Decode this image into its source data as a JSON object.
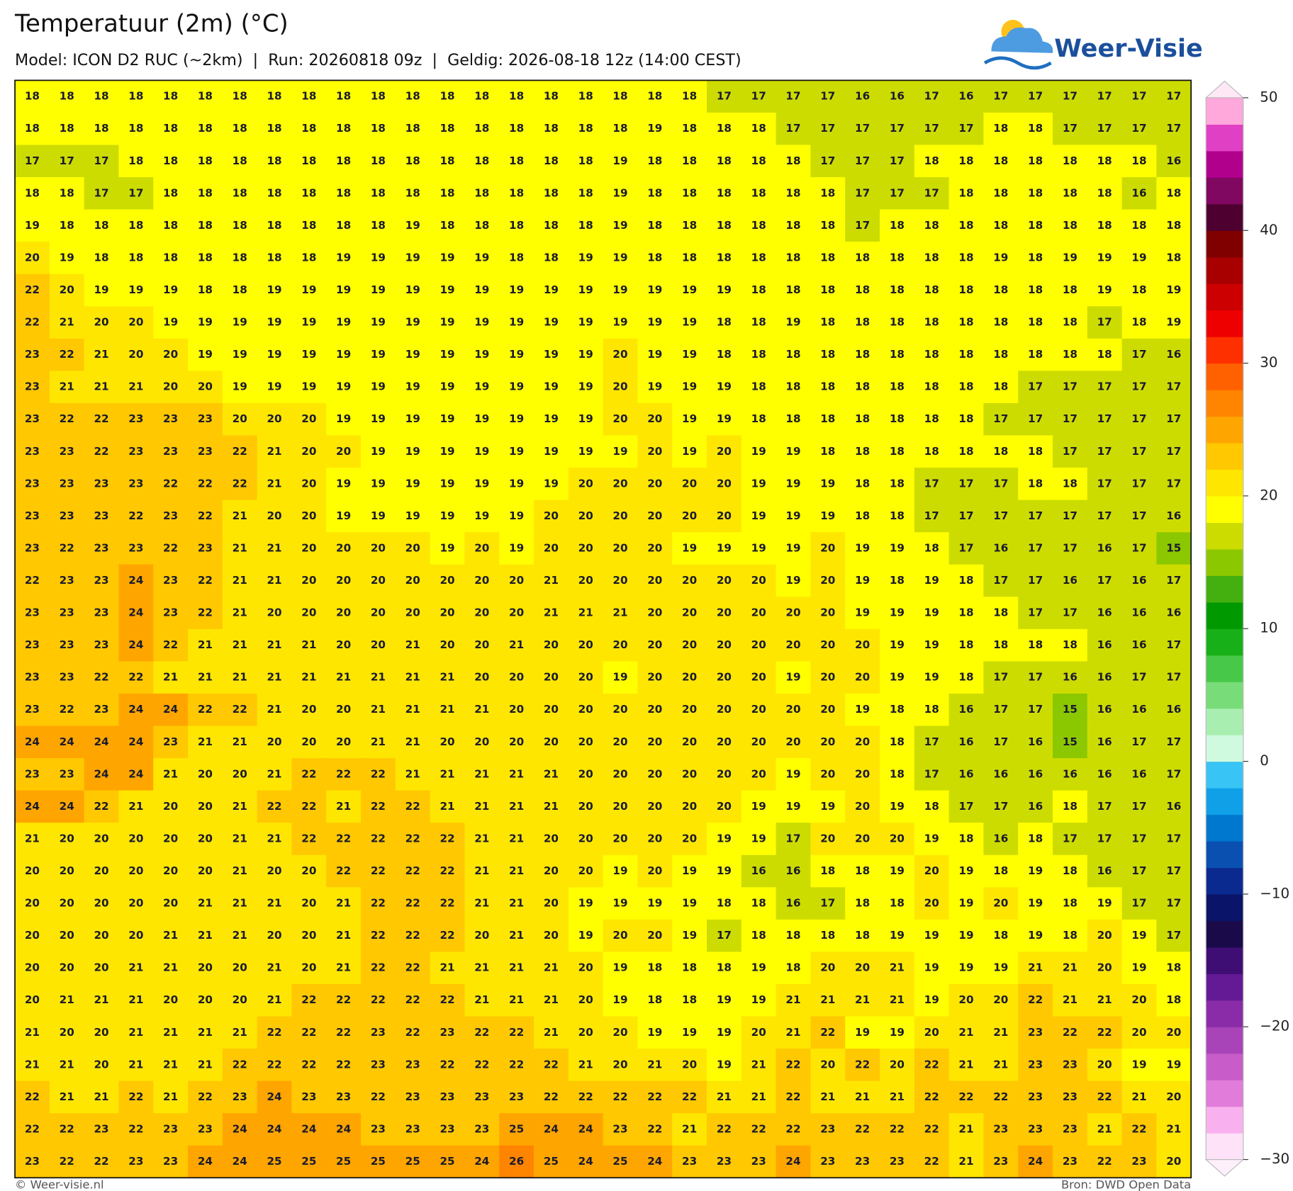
{
  "header": {
    "title": "Temperatuur (2m) (°C)",
    "subtitle": "Model: ICON D2 RUC (~2km)  |  Run: 20260818 09z  |  Geldig: 2026-08-18 12z (14:00 CEST)",
    "logo": "Weer-Visie"
  },
  "grid": {
    "rows": [
      [
        18,
        18,
        18,
        18,
        18,
        18,
        18,
        18,
        18,
        18,
        18,
        18,
        18,
        18,
        18,
        18,
        18,
        18,
        18,
        18,
        17,
        17,
        17,
        17,
        16,
        16,
        17,
        16,
        17,
        17,
        17,
        17,
        17,
        17
      ],
      [
        18,
        18,
        18,
        18,
        18,
        18,
        18,
        18,
        18,
        18,
        18,
        18,
        18,
        18,
        18,
        18,
        18,
        18,
        19,
        18,
        18,
        18,
        17,
        17,
        17,
        17,
        17,
        17,
        18,
        18,
        17,
        17,
        17,
        17
      ],
      [
        17,
        17,
        17,
        18,
        18,
        18,
        18,
        18,
        18,
        18,
        18,
        18,
        18,
        18,
        18,
        18,
        18,
        19,
        18,
        18,
        18,
        18,
        18,
        17,
        17,
        17,
        18,
        18,
        18,
        18,
        18,
        18,
        18,
        16
      ],
      [
        18,
        18,
        17,
        17,
        18,
        18,
        18,
        18,
        18,
        18,
        18,
        18,
        18,
        18,
        18,
        18,
        18,
        19,
        18,
        18,
        18,
        18,
        18,
        18,
        17,
        17,
        17,
        18,
        18,
        18,
        18,
        18,
        16,
        18
      ],
      [
        19,
        18,
        18,
        18,
        18,
        18,
        18,
        18,
        18,
        18,
        18,
        19,
        18,
        18,
        18,
        18,
        18,
        19,
        18,
        18,
        18,
        18,
        18,
        18,
        17,
        18,
        18,
        18,
        18,
        18,
        18,
        18,
        18,
        18
      ],
      [
        20,
        19,
        18,
        18,
        18,
        18,
        18,
        18,
        18,
        19,
        19,
        19,
        19,
        19,
        18,
        18,
        19,
        19,
        18,
        18,
        18,
        18,
        18,
        18,
        18,
        18,
        18,
        18,
        19,
        18,
        19,
        19,
        19,
        18
      ],
      [
        22,
        20,
        19,
        19,
        19,
        18,
        18,
        19,
        19,
        19,
        19,
        19,
        19,
        19,
        19,
        19,
        19,
        19,
        19,
        19,
        19,
        18,
        18,
        18,
        18,
        18,
        18,
        18,
        18,
        18,
        18,
        19,
        18,
        19
      ],
      [
        22,
        21,
        20,
        20,
        19,
        19,
        19,
        19,
        19,
        19,
        19,
        19,
        19,
        19,
        19,
        19,
        19,
        19,
        19,
        19,
        18,
        18,
        19,
        18,
        18,
        18,
        18,
        18,
        18,
        18,
        18,
        17,
        18,
        19
      ],
      [
        23,
        22,
        21,
        20,
        20,
        19,
        19,
        19,
        19,
        19,
        19,
        19,
        19,
        19,
        19,
        19,
        19,
        20,
        19,
        19,
        18,
        18,
        18,
        18,
        18,
        18,
        18,
        18,
        18,
        18,
        18,
        18,
        17,
        16
      ],
      [
        23,
        21,
        21,
        21,
        20,
        20,
        19,
        19,
        19,
        19,
        19,
        19,
        19,
        19,
        19,
        19,
        19,
        20,
        19,
        19,
        19,
        18,
        18,
        18,
        18,
        18,
        18,
        18,
        18,
        17,
        17,
        17,
        17,
        17
      ],
      [
        23,
        22,
        22,
        23,
        23,
        23,
        20,
        20,
        20,
        19,
        19,
        19,
        19,
        19,
        19,
        19,
        19,
        20,
        20,
        19,
        19,
        18,
        18,
        18,
        18,
        18,
        18,
        18,
        17,
        17,
        17,
        17,
        17,
        17
      ],
      [
        23,
        23,
        22,
        23,
        23,
        23,
        22,
        21,
        20,
        20,
        19,
        19,
        19,
        19,
        19,
        19,
        19,
        19,
        20,
        19,
        20,
        19,
        19,
        18,
        18,
        18,
        18,
        18,
        18,
        18,
        17,
        17,
        17,
        17
      ],
      [
        23,
        23,
        23,
        23,
        22,
        22,
        22,
        21,
        20,
        19,
        19,
        19,
        19,
        19,
        19,
        19,
        20,
        20,
        20,
        20,
        20,
        19,
        19,
        19,
        18,
        18,
        17,
        17,
        17,
        18,
        18,
        17,
        17,
        17
      ],
      [
        23,
        23,
        23,
        22,
        23,
        22,
        21,
        20,
        20,
        19,
        19,
        19,
        19,
        19,
        19,
        20,
        20,
        20,
        20,
        20,
        20,
        19,
        19,
        19,
        18,
        18,
        17,
        17,
        17,
        17,
        17,
        17,
        17,
        16
      ],
      [
        23,
        22,
        23,
        23,
        22,
        23,
        21,
        21,
        20,
        20,
        20,
        20,
        19,
        20,
        19,
        20,
        20,
        20,
        20,
        19,
        19,
        19,
        19,
        20,
        19,
        19,
        18,
        17,
        16,
        17,
        17,
        16,
        17,
        15
      ],
      [
        22,
        23,
        23,
        24,
        23,
        22,
        21,
        21,
        20,
        20,
        20,
        20,
        20,
        20,
        20,
        21,
        20,
        20,
        20,
        20,
        20,
        20,
        19,
        20,
        19,
        18,
        19,
        18,
        17,
        17,
        16,
        17,
        16,
        17
      ],
      [
        23,
        23,
        23,
        24,
        23,
        22,
        21,
        20,
        20,
        20,
        20,
        20,
        20,
        20,
        20,
        21,
        21,
        21,
        20,
        20,
        20,
        20,
        20,
        20,
        19,
        19,
        19,
        18,
        18,
        17,
        17,
        16,
        16,
        16
      ],
      [
        23,
        23,
        23,
        24,
        22,
        21,
        21,
        21,
        21,
        20,
        20,
        21,
        20,
        20,
        21,
        20,
        20,
        20,
        20,
        20,
        20,
        20,
        20,
        20,
        20,
        19,
        19,
        18,
        18,
        18,
        18,
        16,
        16,
        17
      ],
      [
        23,
        23,
        22,
        22,
        21,
        21,
        21,
        21,
        21,
        21,
        21,
        21,
        21,
        20,
        20,
        20,
        20,
        19,
        20,
        20,
        20,
        20,
        19,
        20,
        20,
        19,
        19,
        18,
        17,
        17,
        16,
        16,
        17,
        17
      ],
      [
        23,
        22,
        23,
        24,
        24,
        22,
        22,
        21,
        20,
        20,
        21,
        21,
        21,
        21,
        20,
        20,
        20,
        20,
        20,
        20,
        20,
        20,
        20,
        20,
        19,
        18,
        18,
        16,
        17,
        17,
        15,
        16,
        16,
        16
      ],
      [
        24,
        24,
        24,
        24,
        23,
        21,
        21,
        20,
        20,
        20,
        21,
        21,
        20,
        20,
        20,
        20,
        20,
        20,
        20,
        20,
        20,
        20,
        20,
        20,
        20,
        18,
        17,
        16,
        17,
        16,
        15,
        16,
        17,
        17
      ],
      [
        23,
        23,
        24,
        24,
        21,
        20,
        20,
        21,
        22,
        22,
        22,
        21,
        21,
        21,
        21,
        21,
        20,
        20,
        20,
        20,
        20,
        20,
        19,
        20,
        20,
        18,
        17,
        16,
        16,
        16,
        16,
        16,
        16,
        17
      ],
      [
        24,
        24,
        22,
        21,
        20,
        20,
        21,
        22,
        22,
        21,
        22,
        22,
        21,
        21,
        21,
        21,
        20,
        20,
        20,
        20,
        20,
        19,
        19,
        19,
        20,
        19,
        18,
        17,
        17,
        16,
        18,
        17,
        17,
        16
      ],
      [
        21,
        20,
        20,
        20,
        20,
        20,
        21,
        21,
        22,
        22,
        22,
        22,
        22,
        21,
        21,
        20,
        20,
        20,
        20,
        20,
        19,
        19,
        17,
        20,
        20,
        20,
        19,
        18,
        16,
        18,
        17,
        17,
        17,
        17
      ],
      [
        20,
        20,
        20,
        20,
        20,
        20,
        21,
        20,
        20,
        22,
        22,
        22,
        22,
        21,
        21,
        20,
        20,
        19,
        20,
        19,
        19,
        16,
        16,
        18,
        18,
        19,
        20,
        19,
        18,
        19,
        18,
        16,
        17,
        17
      ],
      [
        20,
        20,
        20,
        20,
        20,
        21,
        21,
        21,
        20,
        21,
        22,
        22,
        22,
        21,
        21,
        20,
        19,
        19,
        19,
        19,
        18,
        18,
        16,
        17,
        18,
        18,
        20,
        19,
        20,
        19,
        18,
        19,
        17,
        17
      ],
      [
        20,
        20,
        20,
        20,
        21,
        21,
        21,
        20,
        20,
        21,
        22,
        22,
        22,
        20,
        21,
        20,
        19,
        20,
        20,
        19,
        17,
        18,
        18,
        18,
        18,
        19,
        19,
        19,
        18,
        19,
        18,
        20,
        19,
        17
      ],
      [
        20,
        20,
        20,
        21,
        21,
        20,
        20,
        21,
        20,
        21,
        22,
        22,
        21,
        21,
        21,
        21,
        20,
        19,
        18,
        18,
        18,
        19,
        18,
        20,
        20,
        21,
        19,
        19,
        19,
        21,
        21,
        20,
        19,
        18
      ],
      [
        20,
        21,
        21,
        21,
        20,
        20,
        20,
        21,
        22,
        22,
        22,
        22,
        22,
        21,
        21,
        21,
        20,
        19,
        18,
        18,
        19,
        19,
        21,
        21,
        21,
        21,
        19,
        20,
        20,
        22,
        21,
        21,
        20,
        18
      ],
      [
        21,
        20,
        20,
        21,
        21,
        21,
        21,
        22,
        22,
        22,
        23,
        22,
        23,
        22,
        22,
        21,
        20,
        20,
        19,
        19,
        19,
        20,
        21,
        22,
        19,
        19,
        20,
        21,
        21,
        23,
        22,
        22,
        20,
        20
      ],
      [
        21,
        21,
        20,
        21,
        21,
        21,
        22,
        22,
        22,
        22,
        23,
        23,
        22,
        22,
        22,
        22,
        21,
        20,
        21,
        20,
        19,
        21,
        22,
        20,
        22,
        20,
        22,
        21,
        21,
        23,
        23,
        20,
        19,
        19
      ],
      [
        22,
        21,
        21,
        22,
        21,
        22,
        23,
        24,
        23,
        23,
        22,
        23,
        23,
        23,
        23,
        22,
        22,
        22,
        22,
        22,
        21,
        21,
        22,
        21,
        21,
        21,
        22,
        22,
        22,
        23,
        23,
        22,
        21,
        20
      ],
      [
        22,
        22,
        23,
        22,
        23,
        23,
        24,
        24,
        24,
        24,
        23,
        23,
        23,
        23,
        25,
        24,
        24,
        23,
        22,
        21,
        22,
        22,
        22,
        23,
        22,
        22,
        22,
        21,
        23,
        23,
        23,
        21,
        22,
        21
      ],
      [
        23,
        22,
        22,
        23,
        23,
        24,
        24,
        25,
        25,
        25,
        25,
        25,
        25,
        24,
        26,
        25,
        24,
        25,
        24,
        23,
        23,
        23,
        24,
        23,
        23,
        23,
        22,
        21,
        23,
        24,
        23,
        22,
        23,
        20
      ]
    ]
  },
  "colorbar": {
    "lim": [
      -30,
      50
    ],
    "ticks": [
      50,
      40,
      30,
      20,
      10,
      0,
      {
        "value": -10,
        "label": "−10"
      },
      {
        "value": -20,
        "label": "−20"
      },
      {
        "value": -30,
        "label": "−30"
      }
    ],
    "colors": [
      "#fde2f8",
      "#f9b0ee",
      "#e17cda",
      "#c85cc9",
      "#a944b8",
      "#8a2ca8",
      "#641a94",
      "#3e0e74",
      "#1a0a4a",
      "#0a1468",
      "#0a2a90",
      "#0a50b0",
      "#0078d0",
      "#10a0e8",
      "#38c4f5",
      "#d0fae0",
      "#a8eeb0",
      "#78dc78",
      "#48c848",
      "#18b018",
      "#009a00",
      "#44b010",
      "#8cc800",
      "#cddc00",
      "#ffff00",
      "#ffe600",
      "#ffc800",
      "#ffa500",
      "#ff8400",
      "#ff6000",
      "#ff3000",
      "#ee0000",
      "#cc0000",
      "#a80000",
      "#800000",
      "#4e0030",
      "#800860",
      "#b0008c",
      "#e040c4",
      "#ffa8dc"
    ]
  },
  "footer": {
    "left": "© Weer-visie.nl",
    "right": "Bron: DWD Open Data"
  }
}
